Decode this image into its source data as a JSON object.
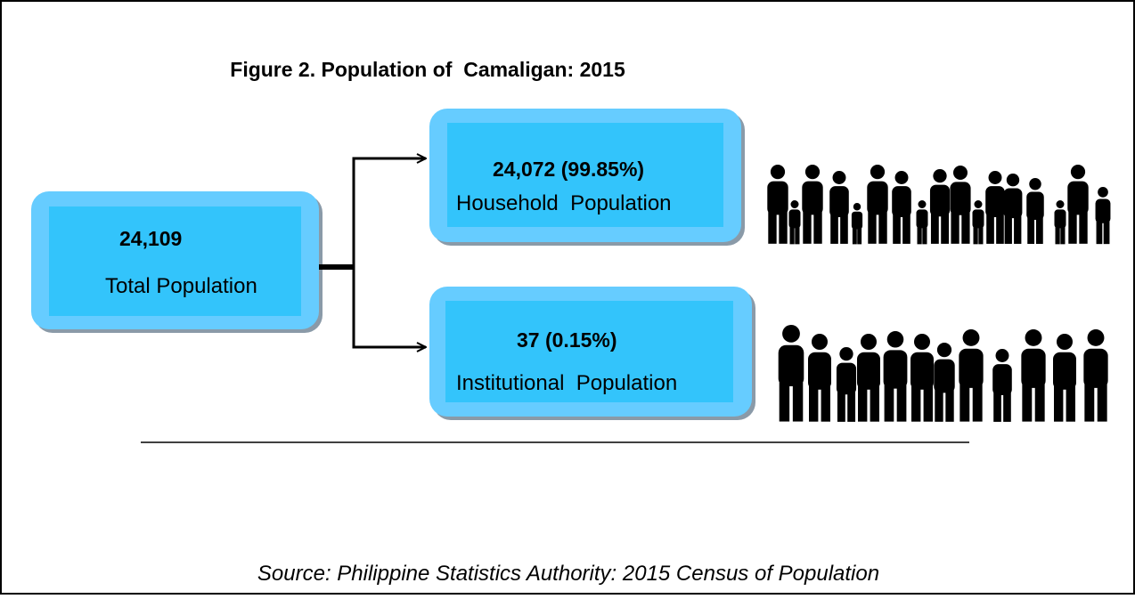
{
  "title": "Figure 2. Population of  Camaligan: 2015",
  "nodes": [
    {
      "value": "24,109",
      "label": "Total Population"
    },
    {
      "value": "24,072 (99.85%)",
      "label": "Household  Population"
    },
    {
      "value": "37 (0.15%)",
      "label": "Institutional  Population"
    }
  ],
  "source": "Source: Philippine Statistics Authority: 2015 Census of Population"
}
